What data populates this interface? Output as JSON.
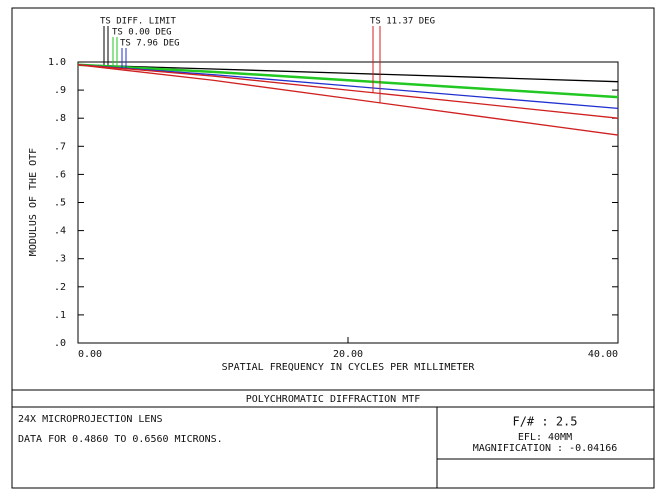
{
  "chart_data": {
    "type": "line",
    "title": "POLYCHROMATIC DIFFRACTION MTF",
    "x_label": "SPATIAL FREQUENCY IN CYCLES PER MILLIMETER",
    "y_label": "MODULUS OF THE OTF",
    "x": [
      0,
      10,
      20,
      30,
      40
    ],
    "series": [
      {
        "name": "TS DIFF. LIMIT",
        "color": "#000000",
        "values": [
          0.99,
          0.975,
          0.96,
          0.945,
          0.93
        ]
      },
      {
        "name": "TS 0.00 DEG",
        "color": "#22c822",
        "values": [
          0.99,
          0.965,
          0.935,
          0.905,
          0.875
        ]
      },
      {
        "name": "TS 7.96 DEG",
        "color": "#2030d0",
        "values": [
          0.99,
          0.955,
          0.915,
          0.875,
          0.835
        ]
      },
      {
        "name": "TS 11.37 DEG",
        "color": "#d02020",
        "values": [
          0.99,
          0.95,
          0.9,
          0.85,
          0.8
        ],
        "values_s": [
          0.99,
          0.935,
          0.87,
          0.805,
          0.74
        ]
      }
    ],
    "xlim": [
      0,
      40
    ],
    "xticks": [
      {
        "value": 0,
        "label": "0.00"
      },
      {
        "value": 20,
        "label": "20.00"
      },
      {
        "value": 40,
        "label": "40.00"
      }
    ],
    "ylim": [
      0,
      1
    ],
    "yticks": [
      {
        "value": 0,
        "label": ".0"
      },
      {
        "value": 0.1,
        "label": ".1"
      },
      {
        "value": 0.2,
        "label": ".2"
      },
      {
        "value": 0.3,
        "label": ".3"
      },
      {
        "value": 0.4,
        "label": ".4"
      },
      {
        "value": 0.5,
        "label": ".5"
      },
      {
        "value": 0.6,
        "label": ".6"
      },
      {
        "value": 0.7,
        "label": ".7"
      },
      {
        "value": 0.8,
        "label": ".8"
      },
      {
        "value": 0.9,
        "label": ".9"
      },
      {
        "value": 1,
        "label": "1.0"
      }
    ],
    "lens": "24X MICROPROJECTION LENS",
    "data_range": "DATA FOR 0.4860 TO 0.6560 MICRONS.",
    "fnumber": "F/# : 2.5",
    "efl": "EFL: 40MM",
    "magnification": "MAGNIFICATION : -0.04166"
  }
}
